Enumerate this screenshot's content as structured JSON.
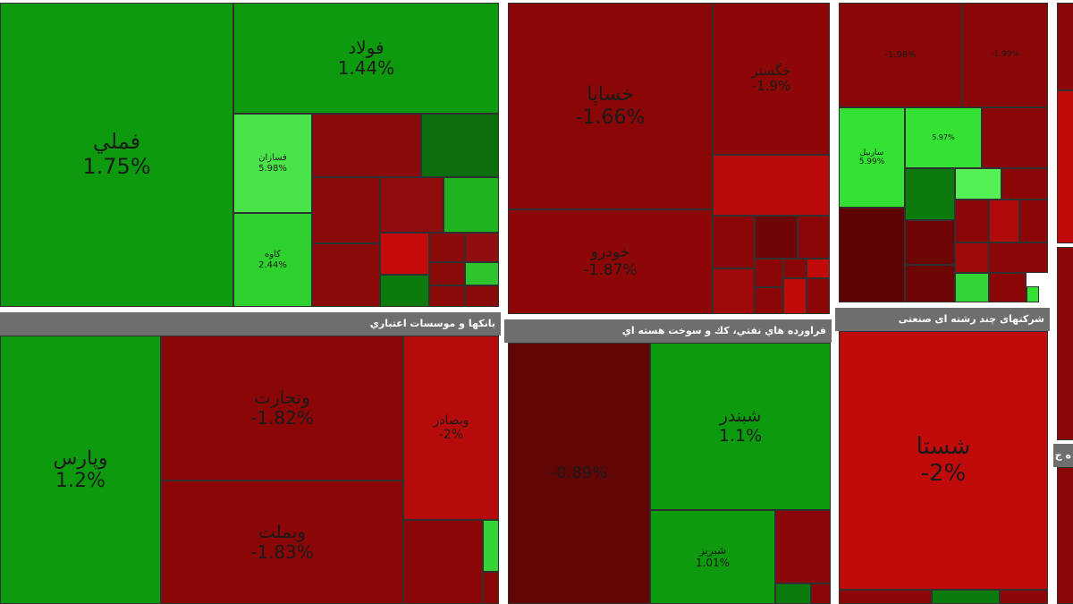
{
  "colors": {
    "background": "#ffffff",
    "header": "#6e6e6e",
    "positive_strong": "#00dd00",
    "positive": "#13a213",
    "negative": "#8b0000",
    "negative_light": "#c40000"
  },
  "panels": [
    {
      "header": "",
      "tiles": [
        {
          "name": "فملي",
          "pct": "1.75%",
          "color": "#0e9a0e"
        },
        {
          "name": "فولاد",
          "pct": "1.44%",
          "color": "#0e9a0e"
        },
        {
          "name": "فسازان",
          "pct": "5.98%",
          "color": "#4ae44a"
        },
        {
          "name": "کاوه",
          "pct": "2.44%",
          "color": "#2ed02e"
        },
        {
          "name": "",
          "pct": "",
          "color": "#8b0b0b"
        },
        {
          "name": "",
          "pct": "",
          "color": "#0b6e0b"
        },
        {
          "name": "",
          "pct": "",
          "color": "#8a0a0a"
        },
        {
          "name": "",
          "pct": "",
          "color": "#8e0c0c"
        },
        {
          "name": "",
          "pct": "",
          "color": "#1fb31f"
        },
        {
          "name": "",
          "pct": "",
          "color": "#8b0b0b"
        },
        {
          "name": "",
          "pct": "",
          "color": "#c40a0a"
        },
        {
          "name": "",
          "pct": "",
          "color": "#8b0b0b"
        },
        {
          "name": "",
          "pct": "",
          "color": "#920d0d"
        },
        {
          "name": "",
          "pct": "",
          "color": "#8b0b0b"
        },
        {
          "name": "",
          "pct": "",
          "color": "#0d7a0d"
        },
        {
          "name": "",
          "pct": "",
          "color": "#8b0b0b"
        },
        {
          "name": "",
          "pct": "",
          "color": "#2ec42e"
        },
        {
          "name": "",
          "pct": "",
          "color": "#8b0b0b"
        },
        {
          "name": "",
          "pct": "",
          "color": "#8b0b0b"
        },
        {
          "name": "",
          "pct": "",
          "color": "#3cd43c"
        }
      ]
    },
    {
      "header": "",
      "tiles": [
        {
          "name": "خساپا",
          "pct": "-1.66%",
          "color": "#8b0707"
        },
        {
          "name": "خگستر",
          "pct": "-1.9%",
          "color": "#8d0707"
        },
        {
          "name": "",
          "pct": "",
          "color": "#b80a0a"
        },
        {
          "name": "خودرو",
          "pct": "-1.87%",
          "color": "#8d0707"
        },
        {
          "name": "",
          "pct": "",
          "color": "#8b0707"
        },
        {
          "name": "",
          "pct": "",
          "color": "#6e0606"
        },
        {
          "name": "",
          "pct": "",
          "color": "#8b0707"
        },
        {
          "name": "",
          "pct": "",
          "color": "#a00909"
        },
        {
          "name": "",
          "pct": "",
          "color": "#c10b0b"
        },
        {
          "name": "",
          "pct": "",
          "color": "#8b0707"
        },
        {
          "name": "",
          "pct": "",
          "color": "#8b0707"
        },
        {
          "name": "",
          "pct": "",
          "color": "#8b0707"
        },
        {
          "name": "",
          "pct": "",
          "color": "#c10b0b"
        },
        {
          "name": "",
          "pct": "",
          "color": "#8b0707"
        }
      ]
    },
    {
      "header": "",
      "tiles": [
        {
          "name": "",
          "pct": "-1.98%",
          "color": "#8b0707"
        },
        {
          "name": "",
          "pct": "-1.99%",
          "color": "#8b0707"
        },
        {
          "name": "",
          "pct": "",
          "color": "#8b0707"
        },
        {
          "name": "ساربیل",
          "pct": "5.99%",
          "color": "#33e233"
        },
        {
          "name": "",
          "pct": "5.97%",
          "color": "#33e233"
        },
        {
          "name": "",
          "pct": "",
          "color": "#0d7a0d"
        },
        {
          "name": "",
          "pct": "",
          "color": "#55f055"
        },
        {
          "name": "",
          "pct": "",
          "color": "#8b0707"
        },
        {
          "name": "",
          "pct": "",
          "color": "#5e0303"
        },
        {
          "name": "",
          "pct": "",
          "color": "#6e0505"
        },
        {
          "name": "",
          "pct": "",
          "color": "#8b0707"
        },
        {
          "name": "",
          "pct": "",
          "color": "#b00a0a"
        },
        {
          "name": "",
          "pct": "",
          "color": "#8b0707"
        },
        {
          "name": "",
          "pct": "",
          "color": "#6e0505"
        },
        {
          "name": "",
          "pct": "",
          "color": "#a00909"
        },
        {
          "name": "",
          "pct": "",
          "color": "#8b0707"
        },
        {
          "name": "",
          "pct": "",
          "color": "#33d433"
        },
        {
          "name": "",
          "pct": "",
          "color": "#8b0707"
        },
        {
          "name": "",
          "pct": "",
          "color": "#33e233"
        }
      ]
    },
    {
      "header": "بانکها و موسسات اعتباري",
      "tiles": [
        {
          "name": "وپارس",
          "pct": "1.2%",
          "color": "#0e9a0e"
        },
        {
          "name": "وتجارت",
          "pct": "-1.82%",
          "color": "#8b0707"
        },
        {
          "name": "وبصادر",
          "pct": "-2%",
          "color": "#b70a0a"
        },
        {
          "name": "وبملت",
          "pct": "-1.83%",
          "color": "#8b0707"
        },
        {
          "name": "",
          "pct": "",
          "color": "#8b0707"
        },
        {
          "name": "",
          "pct": "",
          "color": "#33d433"
        },
        {
          "name": "",
          "pct": "",
          "color": "#8b0707"
        }
      ]
    },
    {
      "header": "فراورده هاي نفتي، كك و سوخت هسته اي",
      "tiles": [
        {
          "name": "",
          "pct": "-0.89%",
          "color": "#620505"
        },
        {
          "name": "شبندر",
          "pct": "1.1%",
          "color": "#0e9a0e"
        },
        {
          "name": "شبريز",
          "pct": "1.01%",
          "color": "#0e9a0e"
        },
        {
          "name": "",
          "pct": "",
          "color": "#8b0707"
        },
        {
          "name": "",
          "pct": "",
          "color": "#0d7a0d"
        },
        {
          "name": "",
          "pct": "",
          "color": "#8b0707"
        }
      ]
    },
    {
      "header": "شرکتهای چند رشته ای صنعتی",
      "tiles": [
        {
          "name": "شستا",
          "pct": "-2%",
          "color": "#c10b0b"
        },
        {
          "name": "",
          "pct": "",
          "color": "#8b0707"
        },
        {
          "name": "",
          "pct": "",
          "color": "#0d7a0d"
        },
        {
          "name": "",
          "pct": "",
          "color": "#8b0707"
        }
      ]
    },
    {
      "header": "ه ج",
      "tiles": [
        {
          "name": "",
          "pct": "",
          "color": "#8b0707"
        },
        {
          "name": "",
          "pct": "",
          "color": "#c10b0b"
        },
        {
          "name": "",
          "pct": "",
          "color": "#8b0707"
        }
      ]
    }
  ]
}
